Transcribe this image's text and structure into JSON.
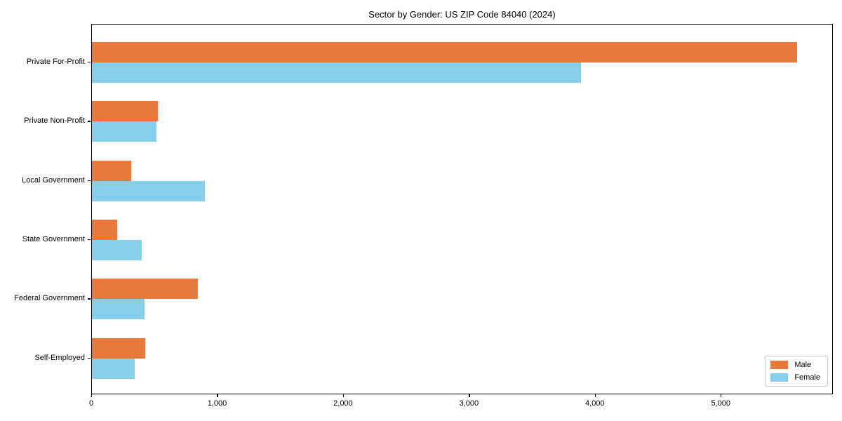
{
  "title": "Sector by Gender: US ZIP Code 84040 (2024)",
  "colors": {
    "male": "#e8793c",
    "female": "#87ceeb",
    "axis": "#000000",
    "background": "#ffffff",
    "legend_border": "#c9c9c9"
  },
  "legend": {
    "position": "lower right",
    "items": [
      {
        "label": "Male",
        "color": "#e8793c"
      },
      {
        "label": "Female",
        "color": "#87ceeb"
      }
    ]
  },
  "chart_data": {
    "type": "bar",
    "orientation": "horizontal",
    "title": "Sector by Gender: US ZIP Code 84040 (2024)",
    "categories": [
      "Private For-Profit",
      "Private Non-Profit",
      "Local Government",
      "State Government",
      "Federal Government",
      "Self-Employed"
    ],
    "series": [
      {
        "name": "Male",
        "color": "#e8793c",
        "values": [
          5600,
          525,
          310,
          200,
          840,
          425
        ]
      },
      {
        "name": "Female",
        "color": "#87ceeb",
        "values": [
          3885,
          510,
          895,
          395,
          420,
          340
        ]
      }
    ],
    "xlabel": "",
    "ylabel": "",
    "xlim": [
      0,
      5890
    ],
    "x_ticks": [
      0,
      1000,
      2000,
      3000,
      4000,
      5000
    ],
    "x_tick_labels": [
      "0",
      "1,000",
      "2,000",
      "3,000",
      "4,000",
      "5,000"
    ],
    "grid": false,
    "legend_position": "lower right"
  }
}
